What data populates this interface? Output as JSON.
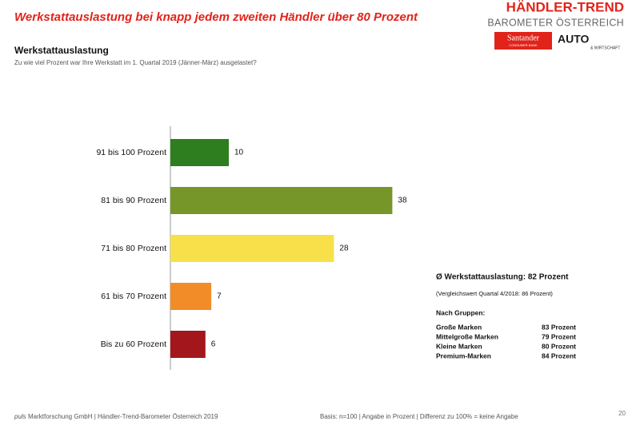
{
  "header": {
    "title": "Werkstattauslastung bei knapp jedem zweiten Händler über 80 Prozent",
    "brand": "HÄNDLER-TREND",
    "brand_sub": "BAROMETER ÖSTERREICH",
    "partner_1": "Santander",
    "partner_1_sub": "CONSUMER BANK",
    "partner_2": "AUTO",
    "partner_2_sub": "& WIRTSCHAFT"
  },
  "chart_data": {
    "type": "hbar",
    "title": "Werkstattauslastung",
    "subtitle": "Zu wie viel Prozent war Ihre Werkstatt im 1. Quartal 2019 (Jänner-März) ausgelastet?",
    "categories": [
      "91 bis 100 Prozent",
      "81 bis 90 Prozent",
      "71 bis 80 Prozent",
      "61 bis 70 Prozent",
      "Bis zu 60 Prozent"
    ],
    "values": [
      10,
      38,
      28,
      7,
      6
    ],
    "colors": [
      "#2e7d1f",
      "#76962a",
      "#f7e04a",
      "#f28c28",
      "#a3161c"
    ]
  },
  "summary": {
    "headline": "Ø Werkstattauslastung: 82 Prozent",
    "comparison": "(Vergleichswert Quartal 4/2018: 86 Prozent)",
    "groups_title": "Nach Gruppen:",
    "groups": [
      [
        "Große Marken",
        "83 Prozent"
      ],
      [
        "Mittelgroße Marken",
        "79 Prozent"
      ],
      [
        "Kleine Marken",
        "80 Prozent"
      ],
      [
        "Premium-Marken",
        "84 Prozent"
      ]
    ]
  },
  "footer": {
    "source_italic": "puls",
    "source": "Marktforschung GmbH | Händler-Trend-Barometer Österreich 2019",
    "basis": "Basis: n=100 | Angabe in Prozent | Differenz zu 100% = keine Angabe",
    "page": "20"
  }
}
